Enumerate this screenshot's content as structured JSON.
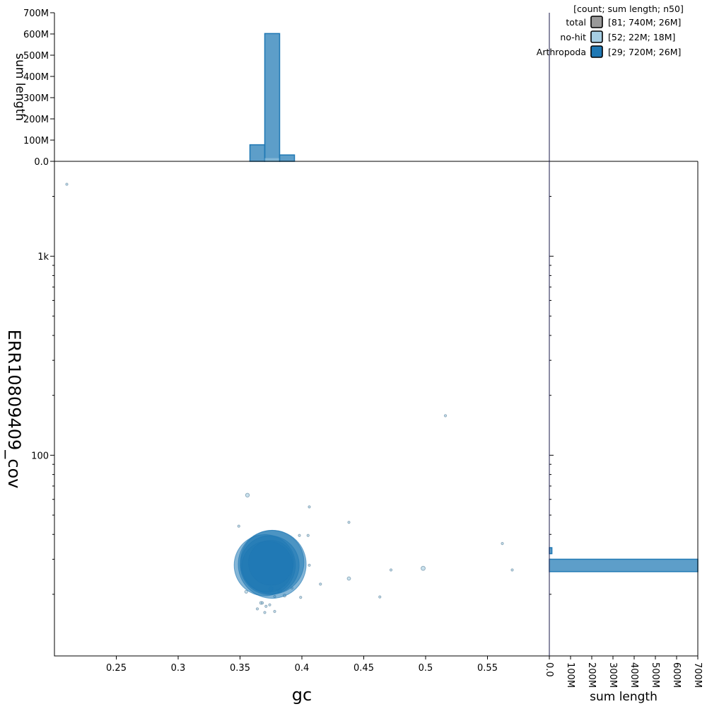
{
  "chart_data": {
    "type": "scatter",
    "xlabel": "gc",
    "ylabel": "ERR10809409_cov",
    "x_ticks": [
      "0.25",
      "0.3",
      "0.35",
      "0.4",
      "0.45",
      "0.5",
      "0.55"
    ],
    "x_tick_values": [
      0.25,
      0.3,
      0.35,
      0.4,
      0.45,
      0.5,
      0.55
    ],
    "xlim": [
      0.2,
      0.6
    ],
    "y_scale": "log",
    "y_ticks": [
      "100",
      "1k"
    ],
    "y_tick_values": [
      100,
      1000
    ],
    "ylim": [
      9.8,
      3000
    ],
    "top_histogram": {
      "ylabel": "sum length",
      "y_ticks": [
        "0.0",
        "100M",
        "200M",
        "300M",
        "400M",
        "500M",
        "600M",
        "700M"
      ],
      "ylim": [
        0,
        700
      ],
      "unit": "M",
      "bins": [
        {
          "x0": 0.358,
          "x1": 0.37,
          "Arthropoda": 78,
          "no-hit": 2
        },
        {
          "x0": 0.37,
          "x1": 0.382,
          "Arthropoda": 602,
          "no-hit": 15
        },
        {
          "x0": 0.382,
          "x1": 0.394,
          "Arthropoda": 30,
          "no-hit": 1
        }
      ]
    },
    "right_histogram": {
      "xlabel": "sum length",
      "x_ticks": [
        "0.0",
        "100M",
        "200M",
        "300M",
        "400M",
        "500M",
        "600M",
        "700M"
      ],
      "xlim": [
        0,
        700
      ],
      "unit": "M",
      "bins": [
        {
          "y0": 32,
          "y1": 34.3,
          "Arthropoda": 12,
          "no-hit": 2
        },
        {
          "y0": 26,
          "y1": 30,
          "Arthropoda": 700,
          "no-hit": 3
        }
      ]
    },
    "legend": {
      "header": "[count; sum length; n50]",
      "position": "top-right",
      "entries": [
        {
          "name": "total",
          "stats": "[81; 740M; 26M]",
          "color": "#999999"
        },
        {
          "name": "no-hit",
          "stats": "[52; 22M; 18M]",
          "color": "#a6cee3"
        },
        {
          "name": "Arthropoda",
          "stats": "[29; 720M; 26M]",
          "color": "#1f78b4"
        }
      ]
    },
    "series": [
      {
        "name": "no-hit",
        "color": "#a6cee3",
        "points": [
          {
            "x": 0.21,
            "y": 2300,
            "length": 0.02
          },
          {
            "x": 0.516,
            "y": 158,
            "length": 0.03
          },
          {
            "x": 0.356,
            "y": 63,
            "length": 0.5
          },
          {
            "x": 0.406,
            "y": 55,
            "length": 0.05
          },
          {
            "x": 0.349,
            "y": 44,
            "length": 0.02
          },
          {
            "x": 0.438,
            "y": 46,
            "length": 0.02
          },
          {
            "x": 0.398,
            "y": 39.5,
            "length": 0.06
          },
          {
            "x": 0.405,
            "y": 39.5,
            "length": 0.02
          },
          {
            "x": 0.562,
            "y": 36,
            "length": 0.02
          },
          {
            "x": 0.406,
            "y": 28,
            "length": 0.08
          },
          {
            "x": 0.498,
            "y": 27,
            "length": 0.6
          },
          {
            "x": 0.472,
            "y": 26.5,
            "length": 0.05
          },
          {
            "x": 0.57,
            "y": 26.5,
            "length": 0.05
          },
          {
            "x": 0.438,
            "y": 24,
            "length": 0.4
          },
          {
            "x": 0.415,
            "y": 22.5,
            "length": 0.1
          },
          {
            "x": 0.392,
            "y": 21.5,
            "length": 0.04
          },
          {
            "x": 0.375,
            "y": 21.3,
            "length": 0.6
          },
          {
            "x": 0.382,
            "y": 20.8,
            "length": 0.5
          },
          {
            "x": 0.355,
            "y": 20.6,
            "length": 0.3
          },
          {
            "x": 0.386,
            "y": 19.7,
            "length": 0.3
          },
          {
            "x": 0.378,
            "y": 19.5,
            "length": 0.15
          },
          {
            "x": 0.399,
            "y": 19.3,
            "length": 0.06
          },
          {
            "x": 0.463,
            "y": 19.4,
            "length": 0.1
          },
          {
            "x": 0.367,
            "y": 18.1,
            "length": 0.3
          },
          {
            "x": 0.368,
            "y": 18.1,
            "length": 0.2
          },
          {
            "x": 0.374,
            "y": 17.7,
            "length": 0.15
          },
          {
            "x": 0.371,
            "y": 17.4,
            "length": 0.04
          },
          {
            "x": 0.364,
            "y": 16.9,
            "length": 0.02
          },
          {
            "x": 0.378,
            "y": 16.4,
            "length": 0.1
          },
          {
            "x": 0.37,
            "y": 16.2,
            "length": 0.05
          }
        ]
      },
      {
        "name": "Arthropoda",
        "color": "#1f78b4",
        "points": [
          {
            "x": 0.376,
            "y": 29,
            "length": 140
          },
          {
            "x": 0.37,
            "y": 28,
            "length": 130
          },
          {
            "x": 0.376,
            "y": 28.3,
            "length": 160
          },
          {
            "x": 0.374,
            "y": 28,
            "length": 120
          },
          {
            "x": 0.372,
            "y": 27.5,
            "length": 90
          },
          {
            "x": 0.375,
            "y": 28.8,
            "length": 70
          }
        ]
      }
    ]
  }
}
